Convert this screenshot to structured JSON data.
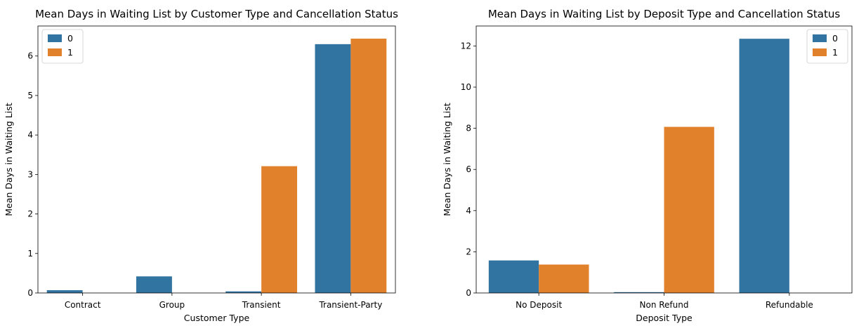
{
  "colors": {
    "series0": "#3274a1",
    "series1": "#e1812c"
  },
  "chart_data": [
    {
      "type": "bar",
      "title": "Mean Days in Waiting List by Customer Type and Cancellation Status",
      "xlabel": "Customer Type",
      "ylabel": "Mean Days in Waiting List",
      "categories": [
        "Contract",
        "Group",
        "Transient",
        "Transient-Party"
      ],
      "series": [
        {
          "name": "0",
          "values": [
            0.07,
            0.42,
            0.04,
            6.3
          ]
        },
        {
          "name": "1",
          "values": [
            0.0,
            0.0,
            3.21,
            6.44
          ]
        }
      ],
      "ylim": [
        0,
        6.76
      ],
      "yticks": [
        0,
        1,
        2,
        3,
        4,
        5,
        6
      ],
      "legend": "top-left",
      "legend_title": "",
      "grid": false
    },
    {
      "type": "bar",
      "title": "Mean Days in Waiting List by Deposit Type and Cancellation Status",
      "xlabel": "Deposit Type",
      "ylabel": "Mean Days in Waiting List",
      "categories": [
        "No Deposit",
        "Non Refund",
        "Refundable"
      ],
      "series": [
        {
          "name": "0",
          "values": [
            1.58,
            0.04,
            12.35
          ]
        },
        {
          "name": "1",
          "values": [
            1.38,
            8.07,
            0.0
          ]
        }
      ],
      "ylim": [
        0,
        12.97
      ],
      "yticks": [
        0,
        2,
        4,
        6,
        8,
        10,
        12
      ],
      "legend": "top-right",
      "legend_title": "",
      "grid": false
    }
  ]
}
